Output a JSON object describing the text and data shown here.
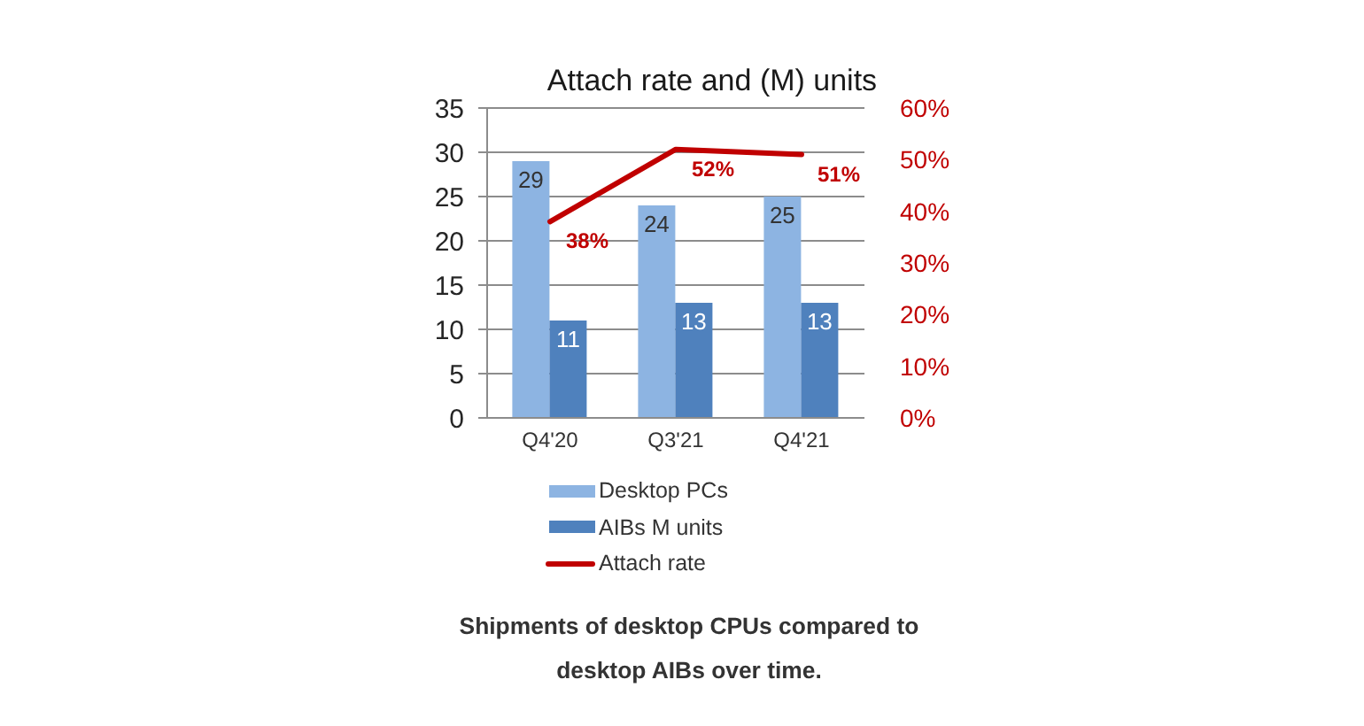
{
  "chart_data": {
    "type": "bar",
    "title": "Attach rate and (M) units",
    "categories": [
      "Q4'20",
      "Q3'21",
      "Q4'21"
    ],
    "series": [
      {
        "name": "Desktop PCs",
        "color": "#8db4e2",
        "values": [
          29,
          24,
          25
        ],
        "value_labels": [
          "29",
          "24",
          "25"
        ]
      },
      {
        "name": "AIBs M units",
        "color": "#4f81bd",
        "values": [
          11,
          13,
          13
        ],
        "value_labels": [
          "11",
          "13",
          "13"
        ]
      },
      {
        "name": "Attach rate",
        "type": "line",
        "axis": "y2",
        "color": "#c00000",
        "values": [
          38,
          52,
          51
        ],
        "value_labels": [
          "38%",
          "52%",
          "51%"
        ]
      }
    ],
    "ylim": [
      0,
      35
    ],
    "yticks": [
      0,
      5,
      10,
      15,
      20,
      25,
      30,
      35
    ],
    "y2lim": [
      0,
      60
    ],
    "y2ticks": [
      {
        "value": 0,
        "label": "0%"
      },
      {
        "value": 10,
        "label": "10%"
      },
      {
        "value": 20,
        "label": "20%"
      },
      {
        "value": 30,
        "label": "30%"
      },
      {
        "value": 40,
        "label": "40%"
      },
      {
        "value": 50,
        "label": "50%"
      },
      {
        "value": 60,
        "label": "60%"
      }
    ],
    "grid": "y",
    "legend": "bottom",
    "annotations": [
      "Shipments of desktop CPUs compared to desktop AIBs over time."
    ]
  }
}
